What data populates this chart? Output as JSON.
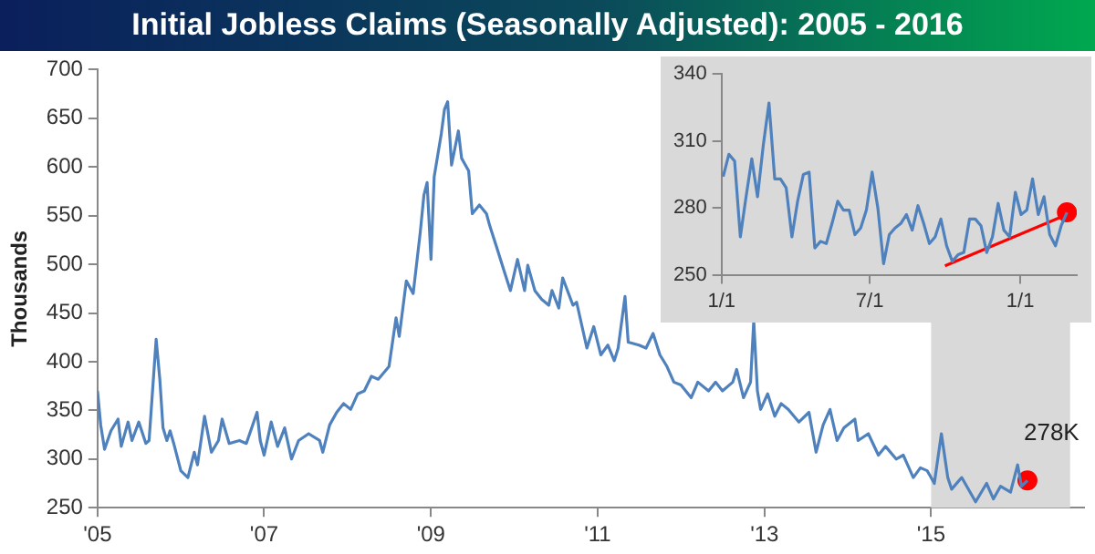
{
  "chart_data": [
    {
      "type": "line",
      "title": "Initial Jobless Claims (Seasonally Adjusted): 2005 - 2016",
      "ylabel": "Thousands",
      "xlim": [
        "2005-01-01",
        "2016-11-01"
      ],
      "xticks": [
        {
          "value": "2005-01-01",
          "label": "'05"
        },
        {
          "value": "2007-01-01",
          "label": "'07"
        },
        {
          "value": "2009-01-01",
          "label": "'09"
        },
        {
          "value": "2011-01-01",
          "label": "'11"
        },
        {
          "value": "2013-01-01",
          "label": "'13"
        },
        {
          "value": "2015-01-01",
          "label": "'15"
        }
      ],
      "ylim": [
        250,
        700
      ],
      "yticks": [
        250,
        300,
        350,
        400,
        450,
        500,
        550,
        600,
        650,
        700
      ],
      "bands": [
        {
          "axis": "x",
          "from": "2015-01-01",
          "to": "2016-09-01",
          "color": "#d9d9d9"
        }
      ],
      "annotations": [
        {
          "text": "278K",
          "x": "2016-02-27",
          "y": 278
        }
      ],
      "series": [
        {
          "color": "#4f81bd",
          "x": [
            "2005-01-01",
            "2005-01-15",
            "2005-02-01",
            "2005-03-01",
            "2005-04-01",
            "2005-04-15",
            "2005-05-15",
            "2005-06-01",
            "2005-07-01",
            "2005-08-01",
            "2005-08-15",
            "2005-09-15",
            "2005-10-01",
            "2005-10-15",
            "2005-11-01",
            "2005-11-15",
            "2005-12-01",
            "2006-01-01",
            "2006-02-01",
            "2006-03-01",
            "2006-03-15",
            "2006-04-15",
            "2006-05-15",
            "2006-06-15",
            "2006-07-01",
            "2006-08-01",
            "2006-09-15",
            "2006-10-15",
            "2006-12-01",
            "2006-12-15",
            "2007-01-01",
            "2007-02-01",
            "2007-03-01",
            "2007-04-01",
            "2007-05-01",
            "2007-06-01",
            "2007-07-15",
            "2007-09-01",
            "2007-09-15",
            "2007-10-15",
            "2007-11-15",
            "2007-12-15",
            "2008-01-15",
            "2008-02-15",
            "2008-03-15",
            "2008-04-15",
            "2008-05-15",
            "2008-07-01",
            "2008-08-01",
            "2008-08-15",
            "2008-09-15",
            "2008-10-15",
            "2008-11-15",
            "2008-12-01",
            "2008-12-15",
            "2009-01-01",
            "2009-01-15",
            "2009-02-15",
            "2009-03-01",
            "2009-03-15",
            "2009-04-01",
            "2009-05-01",
            "2009-05-15",
            "2009-06-15",
            "2009-07-01",
            "2009-08-01",
            "2009-09-01",
            "2009-09-15",
            "2009-10-15",
            "2009-11-15",
            "2009-12-15",
            "2010-01-15",
            "2010-02-15",
            "2010-03-01",
            "2010-04-01",
            "2010-05-01",
            "2010-06-01",
            "2010-06-15",
            "2010-07-15",
            "2010-08-01",
            "2010-09-15",
            "2010-10-01",
            "2010-11-15",
            "2010-12-15",
            "2011-01-15",
            "2011-02-15",
            "2011-03-15",
            "2011-04-01",
            "2011-05-01",
            "2011-05-15",
            "2011-07-01",
            "2011-08-01",
            "2011-09-01",
            "2011-10-01",
            "2011-11-01",
            "2011-12-01",
            "2012-01-01",
            "2012-02-15",
            "2012-03-15",
            "2012-05-01",
            "2012-06-01",
            "2012-07-01",
            "2012-08-15",
            "2012-09-01",
            "2012-10-01",
            "2012-11-01",
            "2012-11-15",
            "2012-12-01",
            "2012-12-15",
            "2013-01-15",
            "2013-02-15",
            "2013-03-15",
            "2013-04-15",
            "2013-06-01",
            "2013-07-15",
            "2013-08-15",
            "2013-09-15",
            "2013-10-15",
            "2013-11-15",
            "2013-12-15",
            "2014-02-01",
            "2014-02-15",
            "2014-04-01",
            "2014-05-15",
            "2014-06-15",
            "2014-08-01",
            "2014-09-01",
            "2014-10-15",
            "2014-11-15",
            "2014-12-15",
            "2015-01-15",
            "2015-02-15",
            "2015-03-15",
            "2015-04-01",
            "2015-05-15",
            "2015-07-15",
            "2015-09-01",
            "2015-10-01",
            "2015-11-01",
            "2015-12-15",
            "2016-01-15",
            "2016-02-01",
            "2016-02-27"
          ],
          "values": [
            370,
            335,
            310,
            329,
            341,
            313,
            338,
            319,
            338,
            316,
            319,
            423,
            382,
            332,
            319,
            329,
            316,
            288,
            281,
            307,
            294,
            344,
            307,
            319,
            341,
            316,
            319,
            316,
            348,
            319,
            304,
            338,
            313,
            332,
            300,
            319,
            326,
            319,
            307,
            335,
            348,
            357,
            351,
            367,
            370,
            385,
            382,
            395,
            445,
            426,
            483,
            470,
            533,
            571,
            584,
            505,
            590,
            634,
            659,
            667,
            602,
            637,
            609,
            596,
            552,
            561,
            552,
            540,
            518,
            495,
            473,
            505,
            473,
            499,
            473,
            464,
            458,
            473,
            455,
            486,
            458,
            461,
            414,
            436,
            407,
            417,
            401,
            414,
            467,
            420,
            417,
            414,
            429,
            407,
            395,
            379,
            376,
            363,
            379,
            370,
            379,
            370,
            379,
            392,
            363,
            379,
            442,
            370,
            351,
            367,
            344,
            357,
            351,
            338,
            348,
            307,
            335,
            351,
            319,
            332,
            341,
            319,
            326,
            304,
            313,
            300,
            304,
            281,
            291,
            288,
            275,
            326,
            281,
            269,
            281,
            256,
            275,
            259,
            272,
            266,
            294,
            272,
            278
          ]
        },
        {
          "type": "scatter",
          "marker": "circle",
          "color": "#ff0000",
          "x": [
            "2016-02-27"
          ],
          "values": [
            278
          ]
        }
      ]
    },
    {
      "type": "line",
      "xlim": [
        "2015-01-01",
        "2016-03-10"
      ],
      "xticks": [
        {
          "value": "2015-01-01",
          "label": "1/1"
        },
        {
          "value": "2015-07-01",
          "label": "7/1"
        },
        {
          "value": "2016-01-01",
          "label": "1/1"
        }
      ],
      "ylim": [
        250,
        340
      ],
      "yticks": [
        250,
        280,
        310,
        340
      ],
      "series": [
        {
          "color": "#4f81bd",
          "x": [
            "2015-01-03",
            "2015-01-10",
            "2015-01-17",
            "2015-01-24",
            "2015-01-31",
            "2015-02-07",
            "2015-02-14",
            "2015-02-21",
            "2015-02-28",
            "2015-03-07",
            "2015-03-14",
            "2015-03-21",
            "2015-03-28",
            "2015-04-04",
            "2015-04-11",
            "2015-04-18",
            "2015-04-25",
            "2015-05-02",
            "2015-05-09",
            "2015-05-16",
            "2015-05-23",
            "2015-05-30",
            "2015-06-06",
            "2015-06-13",
            "2015-06-20",
            "2015-06-27",
            "2015-07-04",
            "2015-07-11",
            "2015-07-18",
            "2015-07-25",
            "2015-08-01",
            "2015-08-08",
            "2015-08-15",
            "2015-08-22",
            "2015-08-29",
            "2015-09-05",
            "2015-09-12",
            "2015-09-19",
            "2015-09-26",
            "2015-10-03",
            "2015-10-10",
            "2015-10-17",
            "2015-10-24",
            "2015-10-31",
            "2015-11-07",
            "2015-11-14",
            "2015-11-21",
            "2015-11-28",
            "2015-12-05",
            "2015-12-12",
            "2015-12-19",
            "2015-12-26",
            "2016-01-02",
            "2016-01-09",
            "2016-01-16",
            "2016-01-23",
            "2016-01-30",
            "2016-02-06",
            "2016-02-13",
            "2016-02-20",
            "2016-02-27"
          ],
          "values": [
            294,
            304,
            301,
            267,
            285,
            302,
            285,
            308,
            327,
            293,
            293,
            289,
            267,
            283,
            295,
            296,
            262,
            265,
            264,
            273,
            283,
            279,
            279,
            268,
            271,
            279,
            296,
            280,
            255,
            268,
            271,
            273,
            277,
            270,
            281,
            273,
            264,
            267,
            275,
            263,
            256,
            259,
            260,
            275,
            275,
            272,
            260,
            267,
            282,
            270,
            267,
            287,
            277,
            279,
            293,
            277,
            285,
            268,
            263,
            272,
            278
          ]
        },
        {
          "color": "#ff0000",
          "x": [
            "2015-10-01",
            "2016-02-27"
          ],
          "values": [
            254,
            277
          ]
        },
        {
          "type": "scatter",
          "marker": "circle",
          "color": "#ff0000",
          "x": [
            "2016-02-27"
          ],
          "values": [
            278
          ]
        }
      ]
    }
  ]
}
